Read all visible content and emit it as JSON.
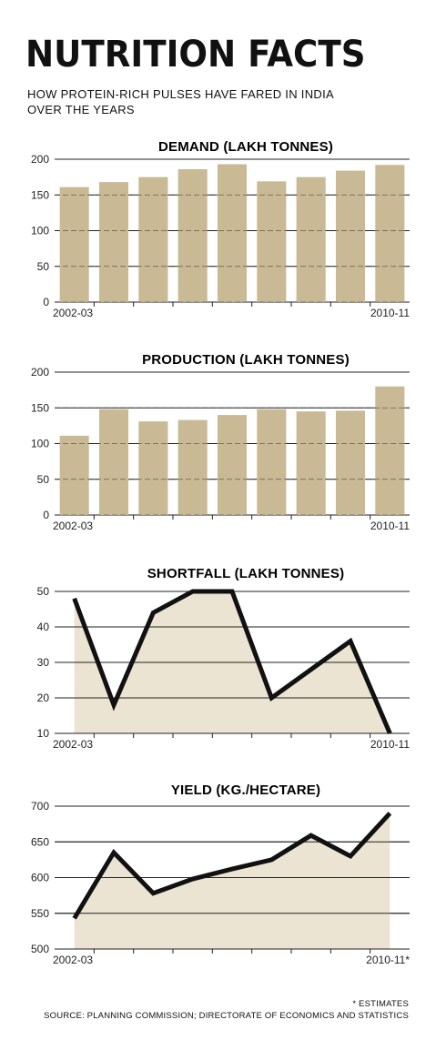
{
  "header": {
    "title": "NUTRITION FACTS",
    "subtitle": "HOW PROTEIN-RICH PULSES HAVE FARED IN INDIA OVER THE YEARS"
  },
  "colors": {
    "bar_fill": "#c9b994",
    "area_fill": "#ebe4d2",
    "line": "#111111",
    "grid": "#222222"
  },
  "chart_data": [
    {
      "type": "bar",
      "title": "DEMAND (LAKH TONNES)",
      "categories": [
        "2002-03",
        "",
        "",
        "",
        "",
        "",
        "",
        "",
        "2010-11"
      ],
      "values": [
        161,
        168,
        175,
        186,
        193,
        169,
        175,
        184,
        192
      ],
      "ylim": [
        0,
        200
      ],
      "yticks": [
        0,
        50,
        100,
        150,
        200
      ],
      "grid": true
    },
    {
      "type": "bar",
      "title": "PRODUCTION (LAKH TONNES)",
      "categories": [
        "2002-03",
        "",
        "",
        "",
        "",
        "",
        "",
        "",
        "2010-11"
      ],
      "values": [
        111,
        148,
        131,
        133,
        140,
        148,
        145,
        146,
        180
      ],
      "ylim": [
        0,
        200
      ],
      "yticks": [
        0,
        50,
        100,
        150,
        200
      ],
      "grid": true
    },
    {
      "type": "area",
      "title": "SHORTFALL (LAKH TONNES)",
      "categories": [
        "2002-03",
        "",
        "",
        "",
        "",
        "",
        "",
        "",
        "2010-11"
      ],
      "values": [
        48,
        18,
        44,
        50,
        50,
        20,
        28,
        36,
        10
      ],
      "ylim": [
        10,
        50
      ],
      "yticks": [
        10,
        20,
        30,
        40,
        50
      ],
      "grid": true
    },
    {
      "type": "area",
      "title": "YIELD (KG./HECTARE)",
      "categories": [
        "2002-03",
        "",
        "",
        "",
        "",
        "",
        "",
        "",
        "2010-11*"
      ],
      "values": [
        543,
        635,
        578,
        598,
        612,
        625,
        659,
        630,
        690
      ],
      "ylim": [
        500,
        700
      ],
      "yticks": [
        500,
        550,
        600,
        650,
        700
      ],
      "grid": true
    }
  ],
  "footnotes": {
    "estimates": "* ESTIMATES",
    "source": "SOURCE: PLANNING COMMISSION; DIRECTORATE OF ECONOMICS AND STATISTICS"
  }
}
